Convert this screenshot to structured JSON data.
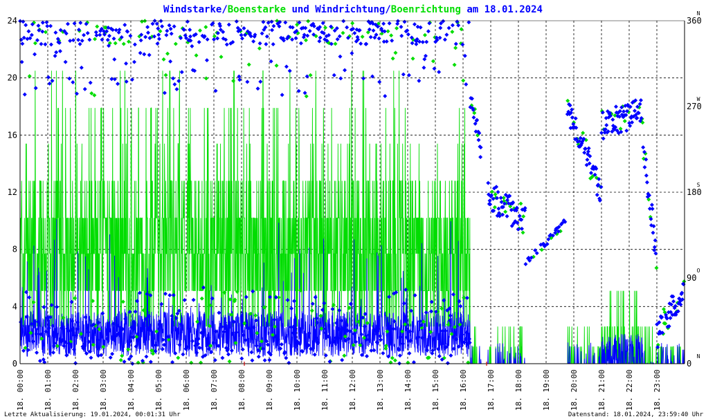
{
  "chart_data": {
    "type": "scatter",
    "title_parts": [
      {
        "text": "Windstarke",
        "color": "#0000ff"
      },
      {
        "text": "/",
        "color": "#0000ff"
      },
      {
        "text": "Boenstarke",
        "color": "#00dd00"
      },
      {
        "text": " und ",
        "color": "#0000ff"
      },
      {
        "text": "Windrichtung",
        "color": "#0000ff"
      },
      {
        "text": "/",
        "color": "#0000ff"
      },
      {
        "text": "Boenrichtung",
        "color": "#00dd00"
      },
      {
        "text": " am 18.01.2024",
        "color": "#0000ff"
      }
    ],
    "colors": {
      "wind": "#0000ff",
      "gust": "#00dd00",
      "axis": "#000000",
      "grid": "#000000",
      "marker": "#cc0000"
    },
    "left_axis": {
      "ylim": [
        0,
        24
      ],
      "ticks": [
        "0",
        "4",
        "8",
        "12",
        "16",
        "20",
        "24"
      ]
    },
    "right_axis": {
      "ylim": [
        0,
        360
      ],
      "ticks": [
        "0",
        "90",
        "180",
        "270",
        "360"
      ],
      "compass": [
        {
          "value": 0,
          "label": "N"
        },
        {
          "value": 90,
          "label": "O"
        },
        {
          "value": 180,
          "label": "S"
        },
        {
          "value": 270,
          "label": "W"
        },
        {
          "value": 360,
          "label": "N"
        }
      ]
    },
    "x_axis": {
      "xlim": [
        0,
        24
      ],
      "ticks": [
        "18. 00:00",
        "18. 01:00",
        "18. 02:00",
        "18. 03:00",
        "18. 04:00",
        "18. 05:00",
        "18. 06:00",
        "18. 07:00",
        "18. 08:00",
        "18. 09:00",
        "18. 10:00",
        "18. 11:00",
        "18. 12:00",
        "18. 13:00",
        "18. 14:00",
        "18. 15:00",
        "18. 16:00",
        "18. 17:00",
        "18. 18:00",
        "18. 19:00",
        "18. 20:00",
        "18. 21:00",
        "18. 22:00",
        "18. 23:00"
      ]
    },
    "grid": true,
    "series": [
      {
        "name": "Windstarke",
        "kind": "speed-line",
        "color": "#0000ff"
      },
      {
        "name": "Boenstarke",
        "kind": "speed-line",
        "color": "#00dd00"
      },
      {
        "name": "Windrichtung",
        "kind": "direction-points",
        "color": "#0000ff"
      },
      {
        "name": "Boenrichtung",
        "kind": "direction-points",
        "color": "#00dd00"
      }
    ],
    "gust_steps": [
      0,
      1.2,
      2.6,
      5.1,
      7.7,
      10.2,
      12.8,
      15.4,
      17.9,
      20.5
    ],
    "segments": [
      {
        "from": 0.0,
        "to": 16.25,
        "activity": "active",
        "speed_mean": 1.6,
        "gust_mean": 7.5,
        "gust_max": 20.5,
        "dir_min": 0,
        "dir_max": 360
      },
      {
        "from": 16.25,
        "to": 17.0,
        "activity": "transition",
        "speed_mean": 0.3,
        "gust_mean": 1.2,
        "gust_max": 2.6,
        "dir_start": 280,
        "dir_end": 175
      },
      {
        "from": 17.0,
        "to": 18.25,
        "activity": "low",
        "speed_mean": 0.0,
        "gust_mean": 0.5,
        "gust_max": 2.6,
        "dir_start": 175,
        "dir_end": 150
      },
      {
        "from": 18.25,
        "to": 19.75,
        "activity": "calm",
        "speed_mean": 0.0,
        "gust_mean": 0.0,
        "gust_max": 0,
        "dir_start": 105,
        "dir_end": 150
      },
      {
        "from": 19.75,
        "to": 21.0,
        "activity": "rising",
        "speed_mean": 0.3,
        "gust_mean": 1.5,
        "gust_max": 2.6,
        "dir_start": 270,
        "dir_end": 180
      },
      {
        "from": 21.0,
        "to": 22.5,
        "activity": "active",
        "speed_mean": 0.8,
        "gust_mean": 2.0,
        "gust_max": 4.9,
        "dir_start": 250,
        "dir_end": 265
      },
      {
        "from": 22.5,
        "to": 23.0,
        "activity": "falling",
        "speed_mean": 0.2,
        "gust_mean": 1.0,
        "gust_max": 2.6,
        "dir_start": 230,
        "dir_end": 110
      },
      {
        "from": 23.0,
        "to": 24.0,
        "activity": "low",
        "speed_mean": 0.1,
        "gust_mean": 0.2,
        "gust_max": 1.2,
        "dir_start": 30,
        "dir_end": 80
      }
    ],
    "gaps": [
      {
        "from": 16.65,
        "to": 16.9
      }
    ]
  },
  "footer": {
    "left": "Letzte Aktualisierung: 19.01.2024, 00:01:31 Uhr",
    "right": "Datenstand: 18.01.2024, 23:59:40 Uhr"
  }
}
